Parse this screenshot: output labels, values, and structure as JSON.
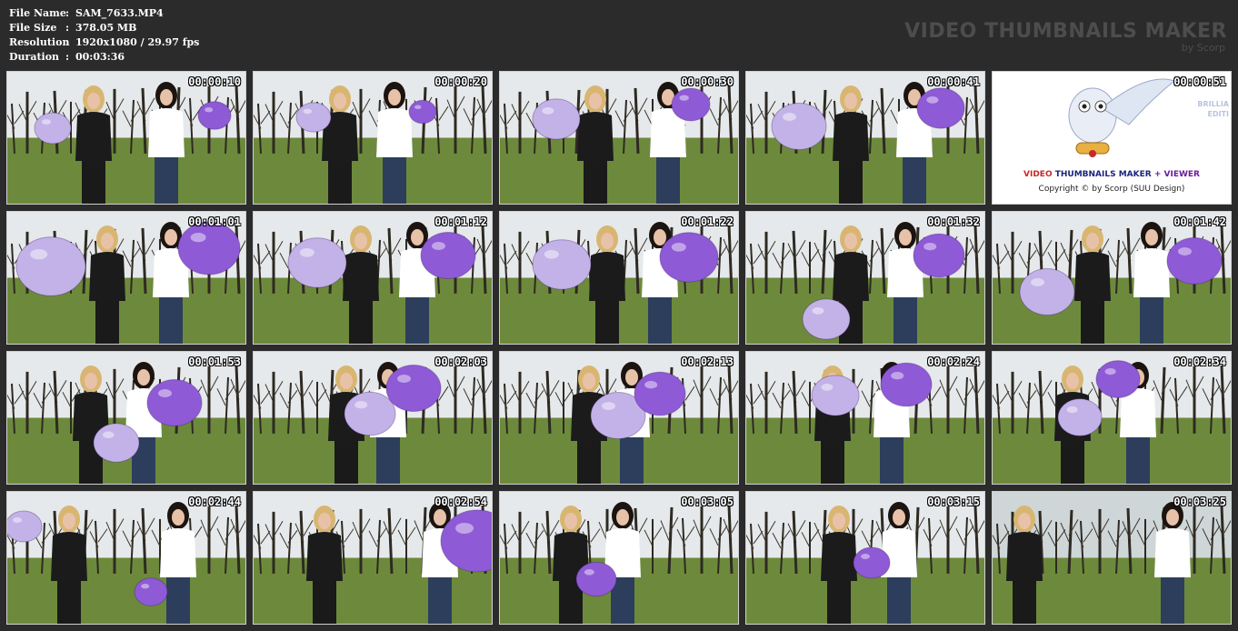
{
  "header": {
    "fields": [
      {
        "label": "File Name",
        "value": "SAM_7633.MP4"
      },
      {
        "label": "File Size",
        "value": "378.05 MB"
      },
      {
        "label": "Resolution",
        "value": "1920x1080 / 29.97 fps"
      },
      {
        "label": "Duration",
        "value": "00:03:36"
      }
    ],
    "separator": ":",
    "brand_title": "VIDEO THUMBNAILS MAKER",
    "brand_sub": "by Scorp"
  },
  "thumbnails": [
    {
      "time": "00:00:10"
    },
    {
      "time": "00:00:20"
    },
    {
      "time": "00:00:30"
    },
    {
      "time": "00:00:41"
    },
    {
      "time": "00:00:51"
    },
    {
      "time": "00:01:01"
    },
    {
      "time": "00:01:12"
    },
    {
      "time": "00:01:22"
    },
    {
      "time": "00:01:32"
    },
    {
      "time": "00:01:42"
    },
    {
      "time": "00:01:53"
    },
    {
      "time": "00:02:03"
    },
    {
      "time": "00:02:13"
    },
    {
      "time": "00:02:24"
    },
    {
      "time": "00:02:34"
    },
    {
      "time": "00:02:44"
    },
    {
      "time": "00:02:54"
    },
    {
      "time": "00:03:05"
    },
    {
      "time": "00:03:15"
    },
    {
      "time": "00:03:25"
    }
  ],
  "logo": {
    "line1_a": "VIDEO ",
    "line1_b": "THUMBNAILS MAKER",
    "line1_c": " + VIEWER",
    "line2": "Copyright © by Scorp (SUU Design)",
    "side_a": "BRILLIA",
    "side_b": "EDITI"
  },
  "colors": {
    "background": "#2b2b2b",
    "balloon_purple": "#8e5ad6",
    "balloon_lilac": "#c2b2e8",
    "grass": "#6d8a3c"
  }
}
